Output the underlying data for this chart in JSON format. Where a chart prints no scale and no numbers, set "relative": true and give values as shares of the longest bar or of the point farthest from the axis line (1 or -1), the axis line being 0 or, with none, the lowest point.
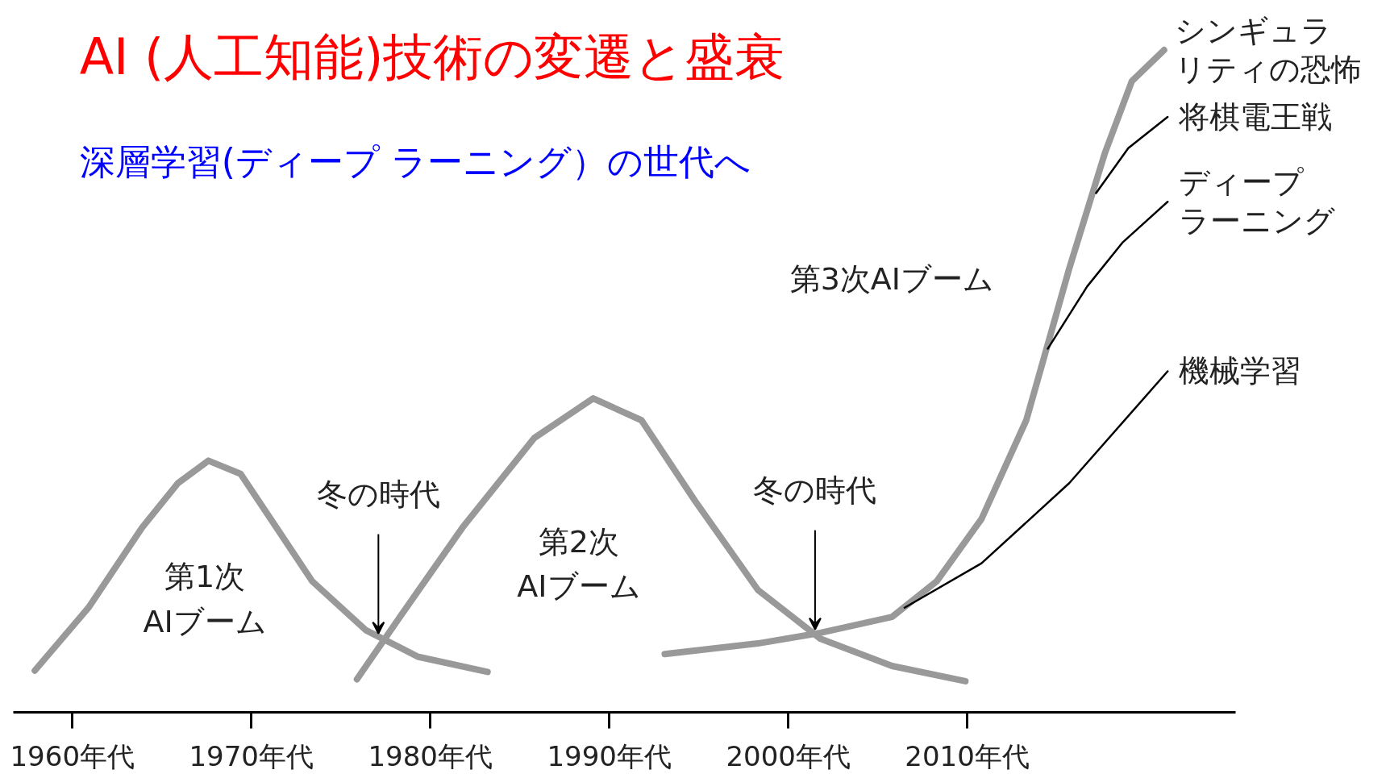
{
  "chart_data": {
    "type": "line",
    "relative": true,
    "title": "AI (人工知能)技術の変遷と盛衰",
    "subtitle": "深層学習(ディープ ラーニング）の世代へ",
    "xlim": [
      1956.7,
      2025
    ],
    "xticks": [
      {
        "value": 1960,
        "label": "1960年代"
      },
      {
        "value": 1970,
        "label": "1970年代"
      },
      {
        "value": 1980,
        "label": "1980年代"
      },
      {
        "value": 1990,
        "label": "1990年代"
      },
      {
        "value": 2000,
        "label": "2000年代"
      },
      {
        "value": 2010,
        "label": "2010年代"
      }
    ],
    "grid": false,
    "marker": "none",
    "line_style": "solid",
    "series": [
      {
        "color": "#999999",
        "x": [
          1957.9,
          1960.9,
          1963.9,
          1965.9,
          1967.6,
          1969.4,
          1971.4,
          1973.4,
          1976.4,
          1979.3,
          1983.2
        ],
        "values": [
          0.063,
          0.158,
          0.279,
          0.346,
          0.38,
          0.36,
          0.279,
          0.198,
          0.124,
          0.084,
          0.061
        ]
      },
      {
        "color": "#999999",
        "x": [
          1975.9,
          1978.3,
          1981.8,
          1985.8,
          1989.1,
          1991.8,
          1994.8,
          1998.3,
          2001.8,
          2005.8,
          2009.9
        ],
        "values": [
          0.05,
          0.144,
          0.279,
          0.414,
          0.474,
          0.441,
          0.319,
          0.185,
          0.111,
          0.07,
          0.047
        ]
      },
      {
        "name": "シンギュラリティの恐怖",
        "color": "#999999",
        "x": [
          1993.1,
          1998.3,
          2001.8,
          2005.8,
          2008.3,
          2010.8,
          2013.3,
          2015.7,
          2017.7,
          2019.2,
          2021.0
        ],
        "values": [
          0.088,
          0.104,
          0.12,
          0.144,
          0.198,
          0.292,
          0.441,
          0.67,
          0.845,
          0.953,
          1.0
        ]
      },
      {
        "name": "将棋電王戦",
        "color": "#000000",
        "x": [
          2017.2,
          2019.0,
          2021.2
        ],
        "values": [
          0.784,
          0.852,
          0.899
        ]
      },
      {
        "name": "ディープラーニング",
        "color": "#000000",
        "x": [
          2014.5,
          2016.7,
          2018.7,
          2021.2
        ],
        "values": [
          0.549,
          0.643,
          0.71,
          0.771
        ]
      },
      {
        "name": "機械学習",
        "color": "#000000",
        "x": [
          2006.5,
          2010.8,
          2015.7,
          2021.2
        ],
        "values": [
          0.158,
          0.225,
          0.346,
          0.515
        ]
      }
    ],
    "annotations": [
      "第1次",
      "AIブーム",
      {
        "text": "冬の時代",
        "x": 1977.1,
        "y": 0.114
      },
      "第2次",
      "AIブーム",
      {
        "text": "冬の時代",
        "x": 2001.5,
        "y": 0.12
      },
      "第3次AIブーム"
    ]
  }
}
